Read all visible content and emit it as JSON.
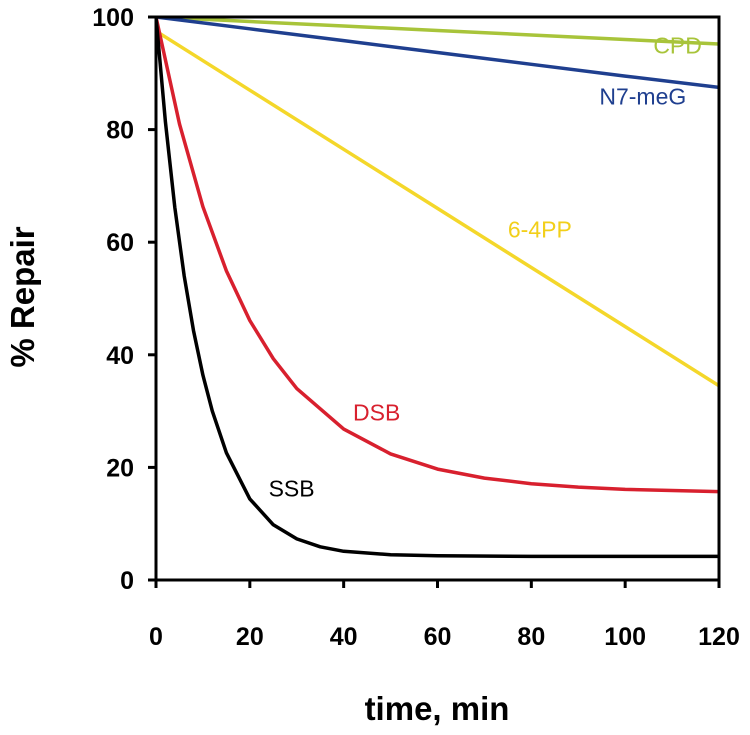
{
  "chart_data": {
    "type": "line",
    "title": "",
    "xlabel": "time, min",
    "ylabel": "% Repair",
    "xlim": [
      0,
      120
    ],
    "ylim": [
      0,
      100
    ],
    "xticks": [
      0,
      20,
      40,
      60,
      80,
      100,
      120
    ],
    "yticks": [
      0,
      20,
      40,
      60,
      80,
      100
    ],
    "grid": false,
    "series": [
      {
        "name": "CPD",
        "color": "#a8c43a",
        "x": [
          0,
          20,
          40,
          60,
          80,
          100,
          120
        ],
        "values": [
          100,
          99.2,
          98.4,
          97.6,
          96.8,
          96.0,
          95.2
        ]
      },
      {
        "name": "N7-meG",
        "color": "#1f3f8f",
        "x": [
          0,
          20,
          40,
          60,
          80,
          100,
          120
        ],
        "values": [
          100,
          97.9,
          95.8,
          93.7,
          91.6,
          89.5,
          87.5
        ]
      },
      {
        "name": "6-4PP",
        "color": "#f4d72a",
        "x": [
          0,
          20,
          40,
          60,
          80,
          100,
          120
        ],
        "values": [
          97.5,
          87.0,
          76.5,
          66.0,
          55.5,
          45.0,
          34.5
        ]
      },
      {
        "name": "DSB",
        "color": "#d8202e",
        "x": [
          0,
          5,
          10,
          15,
          20,
          25,
          30,
          40,
          50,
          60,
          70,
          80,
          90,
          100,
          110,
          120
        ],
        "values": [
          100,
          81.0,
          66.3,
          54.9,
          46.1,
          39.3,
          34.0,
          26.8,
          22.4,
          19.7,
          18.1,
          17.1,
          16.5,
          16.1,
          15.9,
          15.7
        ]
      },
      {
        "name": "SSB",
        "color": "#000000",
        "x": [
          0,
          2,
          4,
          6,
          8,
          10,
          12,
          15,
          20,
          25,
          30,
          35,
          40,
          50,
          60,
          80,
          100,
          120
        ],
        "values": [
          100,
          81.4,
          66.2,
          54.0,
          44.3,
          36.4,
          30.0,
          22.6,
          14.4,
          9.8,
          7.3,
          5.9,
          5.1,
          4.5,
          4.3,
          4.2,
          4.2,
          4.2
        ]
      }
    ],
    "annotations": [
      {
        "text": "CPD",
        "series": "CPD",
        "x": 106,
        "y": 93.5,
        "anchor": "start"
      },
      {
        "text": "N7-meG",
        "series": "N7-meG",
        "x": 94.5,
        "y": 84.5,
        "anchor": "start"
      },
      {
        "text": "6-4PP",
        "series": "6-4PP",
        "x": 75,
        "y": 60.8,
        "anchor": "start"
      },
      {
        "text": "DSB",
        "series": "DSB",
        "x": 42,
        "y": 28.3,
        "anchor": "start"
      },
      {
        "text": "SSB",
        "series": "SSB",
        "x": 24,
        "y": 14.8,
        "anchor": "start"
      }
    ]
  }
}
